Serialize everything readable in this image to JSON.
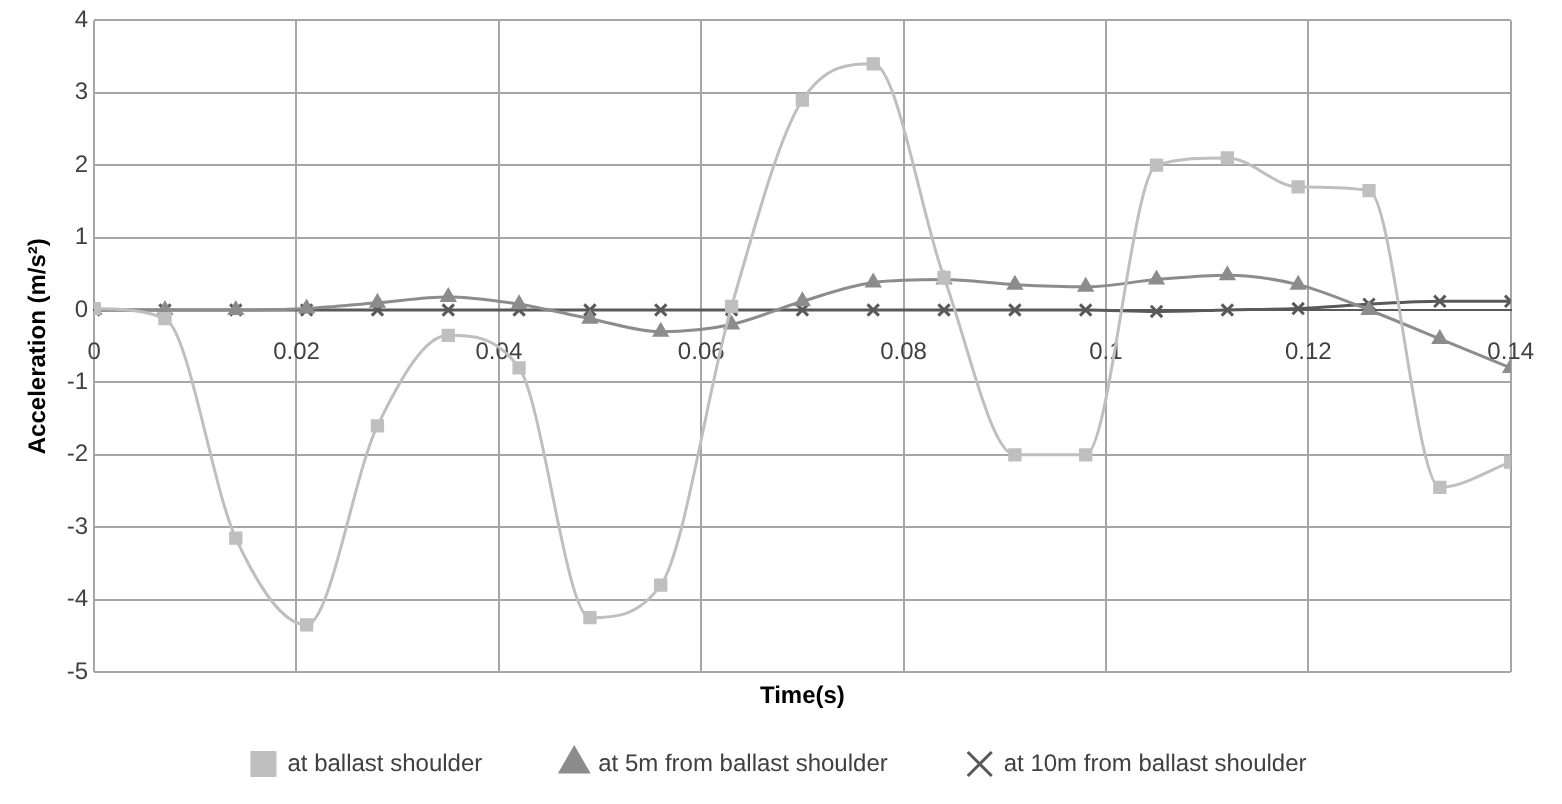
{
  "chart_data": {
    "type": "line",
    "xlabel": "Time(s)",
    "ylabel": "Acceleration (m/s²)",
    "x": [
      0,
      0.007,
      0.014,
      0.021,
      0.028,
      0.035,
      0.042,
      0.049,
      0.056,
      0.063,
      0.07,
      0.077,
      0.084,
      0.091,
      0.098,
      0.105,
      0.112,
      0.119,
      0.126,
      0.133,
      0.14
    ],
    "series": [
      {
        "name": "at ballast shoulder",
        "color": "#bfbfbf",
        "marker": "square",
        "values": [
          0.02,
          -0.12,
          -3.15,
          -4.35,
          -1.6,
          -0.35,
          -0.8,
          -4.25,
          -3.8,
          0.05,
          2.9,
          3.4,
          0.45,
          -2,
          -2,
          2,
          2.1,
          1.7,
          1.65,
          -2.45,
          -2.1
        ]
      },
      {
        "name": "at 5m from ballast shoulder",
        "color": "#8c8c8c",
        "marker": "triangle",
        "values": [
          0,
          0,
          0,
          0.02,
          0.1,
          0.18,
          0.08,
          -0.12,
          -0.3,
          -0.2,
          0.12,
          0.38,
          0.42,
          0.35,
          0.32,
          0.42,
          0.48,
          0.35,
          0,
          -0.4,
          -0.8
        ]
      },
      {
        "name": "at 10m from ballast shoulder",
        "color": "#595959",
        "marker": "cross",
        "values": [
          0,
          0,
          0,
          0,
          0,
          0,
          0,
          0,
          0,
          0,
          0,
          0,
          0,
          0,
          0,
          -0.02,
          0,
          0.02,
          0.08,
          0.12,
          0.12
        ]
      }
    ],
    "xlim": [
      0,
      0.14
    ],
    "xticks": [
      0,
      0.02,
      0.04,
      0.06,
      0.08,
      0.1,
      0.12,
      0.14
    ],
    "ylim": [
      -5,
      4
    ],
    "yticks": [
      -5,
      -4,
      -3,
      -2,
      -1,
      0,
      1,
      2,
      3,
      4
    ],
    "grid": true,
    "legend": "bottom",
    "line_style": "solid"
  }
}
